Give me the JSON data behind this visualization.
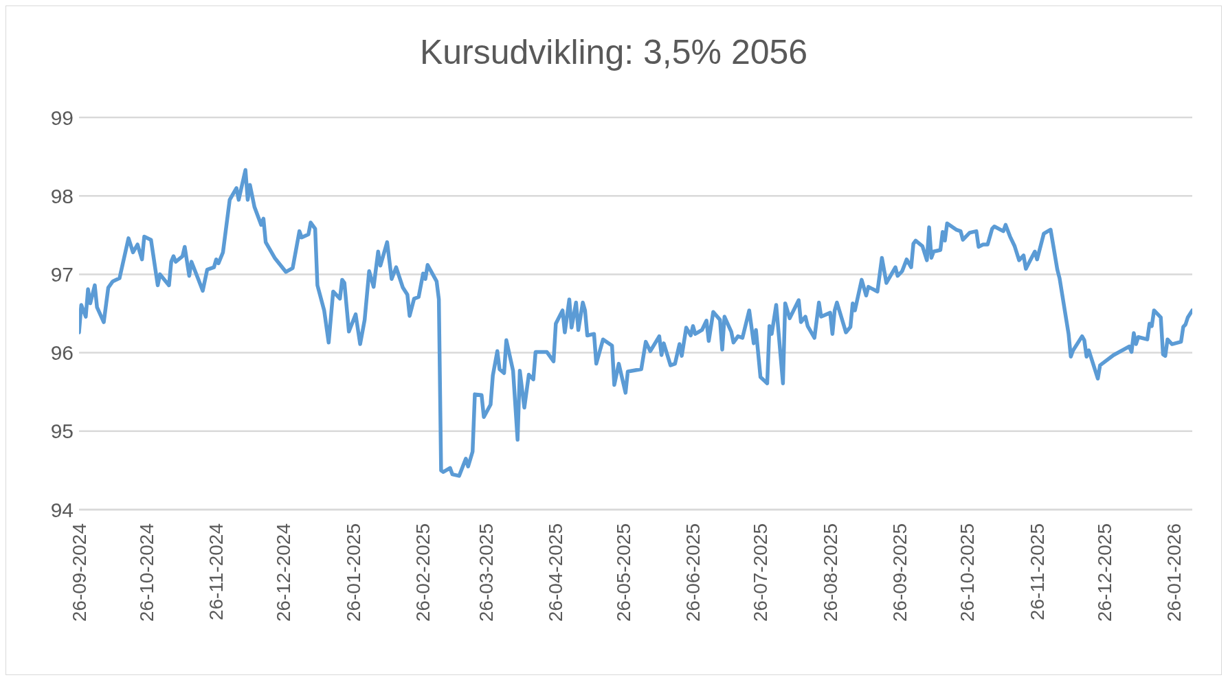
{
  "chart_data": {
    "type": "line",
    "title": "Kursudvikling: 3,5% 2056",
    "color": "#5b9bd5",
    "grid": "y",
    "xlim": [
      "2024-09-26",
      "2026-02-03"
    ],
    "xticks": [
      {
        "value": "2024-09-26",
        "label": "26-09-2024"
      },
      {
        "value": "2024-10-26",
        "label": "26-10-2024"
      },
      {
        "value": "2024-11-26",
        "label": "26-11-2024"
      },
      {
        "value": "2024-12-26",
        "label": "26-12-2024"
      },
      {
        "value": "2025-01-26",
        "label": "26-01-2025"
      },
      {
        "value": "2025-02-26",
        "label": "26-02-2025"
      },
      {
        "value": "2025-03-26",
        "label": "26-03-2025"
      },
      {
        "value": "2025-04-26",
        "label": "26-04-2025"
      },
      {
        "value": "2025-05-26",
        "label": "26-05-2025"
      },
      {
        "value": "2025-06-26",
        "label": "26-06-2025"
      },
      {
        "value": "2025-07-26",
        "label": "26-07-2025"
      },
      {
        "value": "2025-08-26",
        "label": "26-08-2025"
      },
      {
        "value": "2025-09-26",
        "label": "26-09-2025"
      },
      {
        "value": "2025-10-26",
        "label": "26-10-2025"
      },
      {
        "value": "2025-11-26",
        "label": "26-11-2025"
      },
      {
        "value": "2025-12-26",
        "label": "26-12-2025"
      },
      {
        "value": "2026-01-26",
        "label": "26-01-2026"
      }
    ],
    "ylim": [
      94,
      99
    ],
    "yticks": [
      94,
      95,
      96,
      97,
      98,
      99
    ],
    "x": [
      "2024-09-26",
      "2024-09-27",
      "2024-09-29",
      "2024-09-30",
      "2024-10-01",
      "2024-10-03",
      "2024-10-04",
      "2024-10-07",
      "2024-10-09",
      "2024-10-11",
      "2024-10-14",
      "2024-10-18",
      "2024-10-20",
      "2024-10-22",
      "2024-10-24",
      "2024-10-25",
      "2024-10-28",
      "2024-10-31",
      "2024-11-01",
      "2024-11-05",
      "2024-11-06",
      "2024-11-07",
      "2024-11-08",
      "2024-11-11",
      "2024-11-12",
      "2024-11-14",
      "2024-11-15",
      "2024-11-18",
      "2024-11-20",
      "2024-11-22",
      "2024-11-25",
      "2024-11-26",
      "2024-11-27",
      "2024-11-29",
      "2024-12-02",
      "2024-12-05",
      "2024-12-06",
      "2024-12-09",
      "2024-12-10",
      "2024-12-11",
      "2024-12-13",
      "2024-12-16",
      "2024-12-17",
      "2024-12-18",
      "2024-12-22",
      "2024-12-27",
      "2024-12-30",
      "2025-01-02",
      "2025-01-03",
      "2025-01-06",
      "2025-01-07",
      "2025-01-09",
      "2025-01-10",
      "2025-01-13",
      "2025-01-15",
      "2025-01-17",
      "2025-01-20",
      "2025-01-21",
      "2025-01-22",
      "2025-01-24",
      "2025-01-27",
      "2025-01-29",
      "2025-01-31",
      "2025-02-02",
      "2025-02-04",
      "2025-02-06",
      "2025-02-07",
      "2025-02-10",
      "2025-02-12",
      "2025-02-14",
      "2025-02-17",
      "2025-02-19",
      "2025-02-20",
      "2025-02-22",
      "2025-02-24",
      "2025-02-26",
      "2025-02-27",
      "2025-02-28",
      "2025-03-04",
      "2025-03-05",
      "2025-03-06",
      "2025-03-07",
      "2025-03-10",
      "2025-03-11",
      "2025-03-14",
      "2025-03-17",
      "2025-03-18",
      "2025-03-20",
      "2025-03-21",
      "2025-03-24",
      "2025-03-25",
      "2025-03-28",
      "2025-03-29",
      "2025-03-31",
      "2025-04-01",
      "2025-04-03",
      "2025-04-04",
      "2025-04-07",
      "2025-04-09",
      "2025-04-10",
      "2025-04-12",
      "2025-04-14",
      "2025-04-16",
      "2025-04-17",
      "2025-04-22",
      "2025-04-25",
      "2025-04-26",
      "2025-04-29",
      "2025-04-30",
      "2025-05-02",
      "2025-05-03",
      "2025-05-05",
      "2025-05-06",
      "2025-05-08",
      "2025-05-09",
      "2025-05-10",
      "2025-05-13",
      "2025-05-14",
      "2025-05-17",
      "2025-05-21",
      "2025-05-22",
      "2025-05-24",
      "2025-05-27",
      "2025-05-28",
      "2025-06-03",
      "2025-06-05",
      "2025-06-07",
      "2025-06-11",
      "2025-06-12",
      "2025-06-13",
      "2025-06-16",
      "2025-06-18",
      "2025-06-20",
      "2025-06-21",
      "2025-06-23",
      "2025-06-25",
      "2025-06-26",
      "2025-06-27",
      "2025-06-30",
      "2025-07-02",
      "2025-07-03",
      "2025-07-05",
      "2025-07-08",
      "2025-07-09",
      "2025-07-10",
      "2025-07-13",
      "2025-07-14",
      "2025-07-16",
      "2025-07-18",
      "2025-07-21",
      "2025-07-23",
      "2025-07-24",
      "2025-07-26",
      "2025-07-29",
      "2025-07-30",
      "2025-07-31",
      "2025-08-02",
      "2025-08-05",
      "2025-08-06",
      "2025-08-08",
      "2025-08-12",
      "2025-08-13",
      "2025-08-15",
      "2025-08-16",
      "2025-08-19",
      "2025-08-21",
      "2025-08-22",
      "2025-08-26",
      "2025-08-27",
      "2025-08-28",
      "2025-08-29",
      "2025-09-02",
      "2025-09-04",
      "2025-09-05",
      "2025-09-06",
      "2025-09-09",
      "2025-09-11",
      "2025-09-12",
      "2025-09-16",
      "2025-09-18",
      "2025-09-20",
      "2025-09-24",
      "2025-09-25",
      "2025-09-27",
      "2025-09-29",
      "2025-10-01",
      "2025-10-02",
      "2025-10-03",
      "2025-10-06",
      "2025-10-08",
      "2025-10-09",
      "2025-10-10",
      "2025-10-11",
      "2025-10-14",
      "2025-10-15",
      "2025-10-16",
      "2025-10-17",
      "2025-10-21",
      "2025-10-23",
      "2025-10-24",
      "2025-10-27",
      "2025-10-30",
      "2025-10-31",
      "2025-11-02",
      "2025-11-04",
      "2025-11-06",
      "2025-11-07",
      "2025-11-11",
      "2025-11-12",
      "2025-11-14",
      "2025-11-16",
      "2025-11-18",
      "2025-11-20",
      "2025-11-21",
      "2025-11-23",
      "2025-11-25",
      "2025-11-26",
      "2025-11-29",
      "2025-12-02",
      "2025-12-05",
      "2025-12-06",
      "2025-12-10",
      "2025-12-11",
      "2025-12-12",
      "2025-12-16",
      "2025-12-17",
      "2025-12-18",
      "2025-12-19",
      "2025-12-23",
      "2025-12-24",
      "2025-12-30",
      "2026-01-06",
      "2026-01-07",
      "2026-01-08",
      "2026-01-09",
      "2026-01-10",
      "2026-01-14",
      "2026-01-15",
      "2026-01-16",
      "2026-01-17",
      "2026-01-20",
      "2026-01-21",
      "2026-01-22",
      "2026-01-23",
      "2026-01-25",
      "2026-01-29",
      "2026-01-30",
      "2026-01-31",
      "2026-02-01",
      "2026-02-03"
    ],
    "values": [
      96.26,
      96.61,
      96.46,
      96.81,
      96.63,
      96.86,
      96.58,
      96.39,
      96.83,
      96.91,
      96.95,
      97.46,
      97.28,
      97.38,
      97.19,
      97.48,
      97.44,
      96.86,
      97.0,
      96.86,
      97.16,
      97.23,
      97.16,
      97.23,
      97.35,
      96.98,
      97.16,
      96.94,
      96.79,
      97.06,
      97.09,
      97.19,
      97.14,
      97.28,
      97.95,
      98.1,
      97.95,
      98.33,
      97.95,
      98.14,
      97.86,
      97.63,
      97.71,
      97.41,
      97.21,
      97.03,
      97.08,
      97.55,
      97.47,
      97.51,
      97.66,
      97.58,
      96.86,
      96.54,
      96.13,
      96.78,
      96.69,
      96.93,
      96.89,
      96.27,
      96.49,
      96.11,
      96.42,
      97.04,
      96.84,
      97.29,
      97.11,
      97.41,
      96.94,
      97.09,
      96.83,
      96.74,
      96.47,
      96.69,
      96.71,
      97.01,
      96.94,
      97.12,
      96.91,
      96.68,
      94.5,
      94.48,
      94.53,
      94.45,
      94.43,
      94.65,
      94.55,
      94.74,
      95.47,
      95.46,
      95.18,
      95.34,
      95.71,
      96.02,
      95.79,
      95.74,
      96.16,
      95.77,
      94.89,
      95.77,
      95.3,
      95.72,
      95.66,
      96.01,
      96.01,
      95.89,
      96.37,
      96.54,
      96.26,
      96.68,
      96.32,
      96.64,
      96.29,
      96.64,
      96.54,
      96.22,
      96.24,
      95.86,
      96.17,
      96.09,
      95.59,
      95.86,
      95.49,
      95.76,
      95.79,
      96.14,
      96.02,
      96.21,
      95.97,
      96.12,
      95.84,
      95.86,
      96.11,
      95.96,
      96.32,
      96.22,
      96.34,
      96.24,
      96.29,
      96.41,
      96.15,
      96.52,
      96.42,
      96.04,
      96.46,
      96.27,
      96.13,
      96.21,
      96.19,
      96.54,
      96.12,
      96.29,
      95.69,
      95.61,
      96.34,
      96.24,
      96.61,
      95.61,
      96.63,
      96.44,
      96.67,
      96.39,
      96.46,
      96.34,
      96.19,
      96.64,
      96.46,
      96.51,
      96.24,
      96.54,
      96.64,
      96.26,
      96.33,
      96.63,
      96.54,
      96.93,
      96.73,
      96.84,
      96.78,
      97.21,
      96.89,
      97.09,
      96.98,
      97.04,
      97.19,
      97.09,
      97.39,
      97.43,
      97.36,
      97.18,
      97.6,
      97.21,
      97.29,
      97.31,
      97.54,
      97.43,
      97.65,
      97.57,
      97.55,
      97.44,
      97.53,
      97.55,
      97.35,
      97.38,
      97.38,
      97.58,
      97.61,
      97.55,
      97.63,
      97.48,
      97.36,
      97.18,
      97.24,
      97.07,
      97.18,
      97.29,
      97.19,
      97.52,
      97.57,
      97.06,
      96.95,
      96.24,
      95.95,
      96.03,
      96.21,
      96.16,
      95.95,
      96.03,
      95.67,
      95.84,
      95.97,
      96.08,
      96.01,
      96.25,
      96.11,
      96.2,
      96.17,
      96.37,
      96.34,
      96.54,
      96.45,
      95.98,
      95.96,
      96.17,
      96.11,
      96.14,
      96.33,
      96.36,
      96.45,
      96.54
    ]
  }
}
